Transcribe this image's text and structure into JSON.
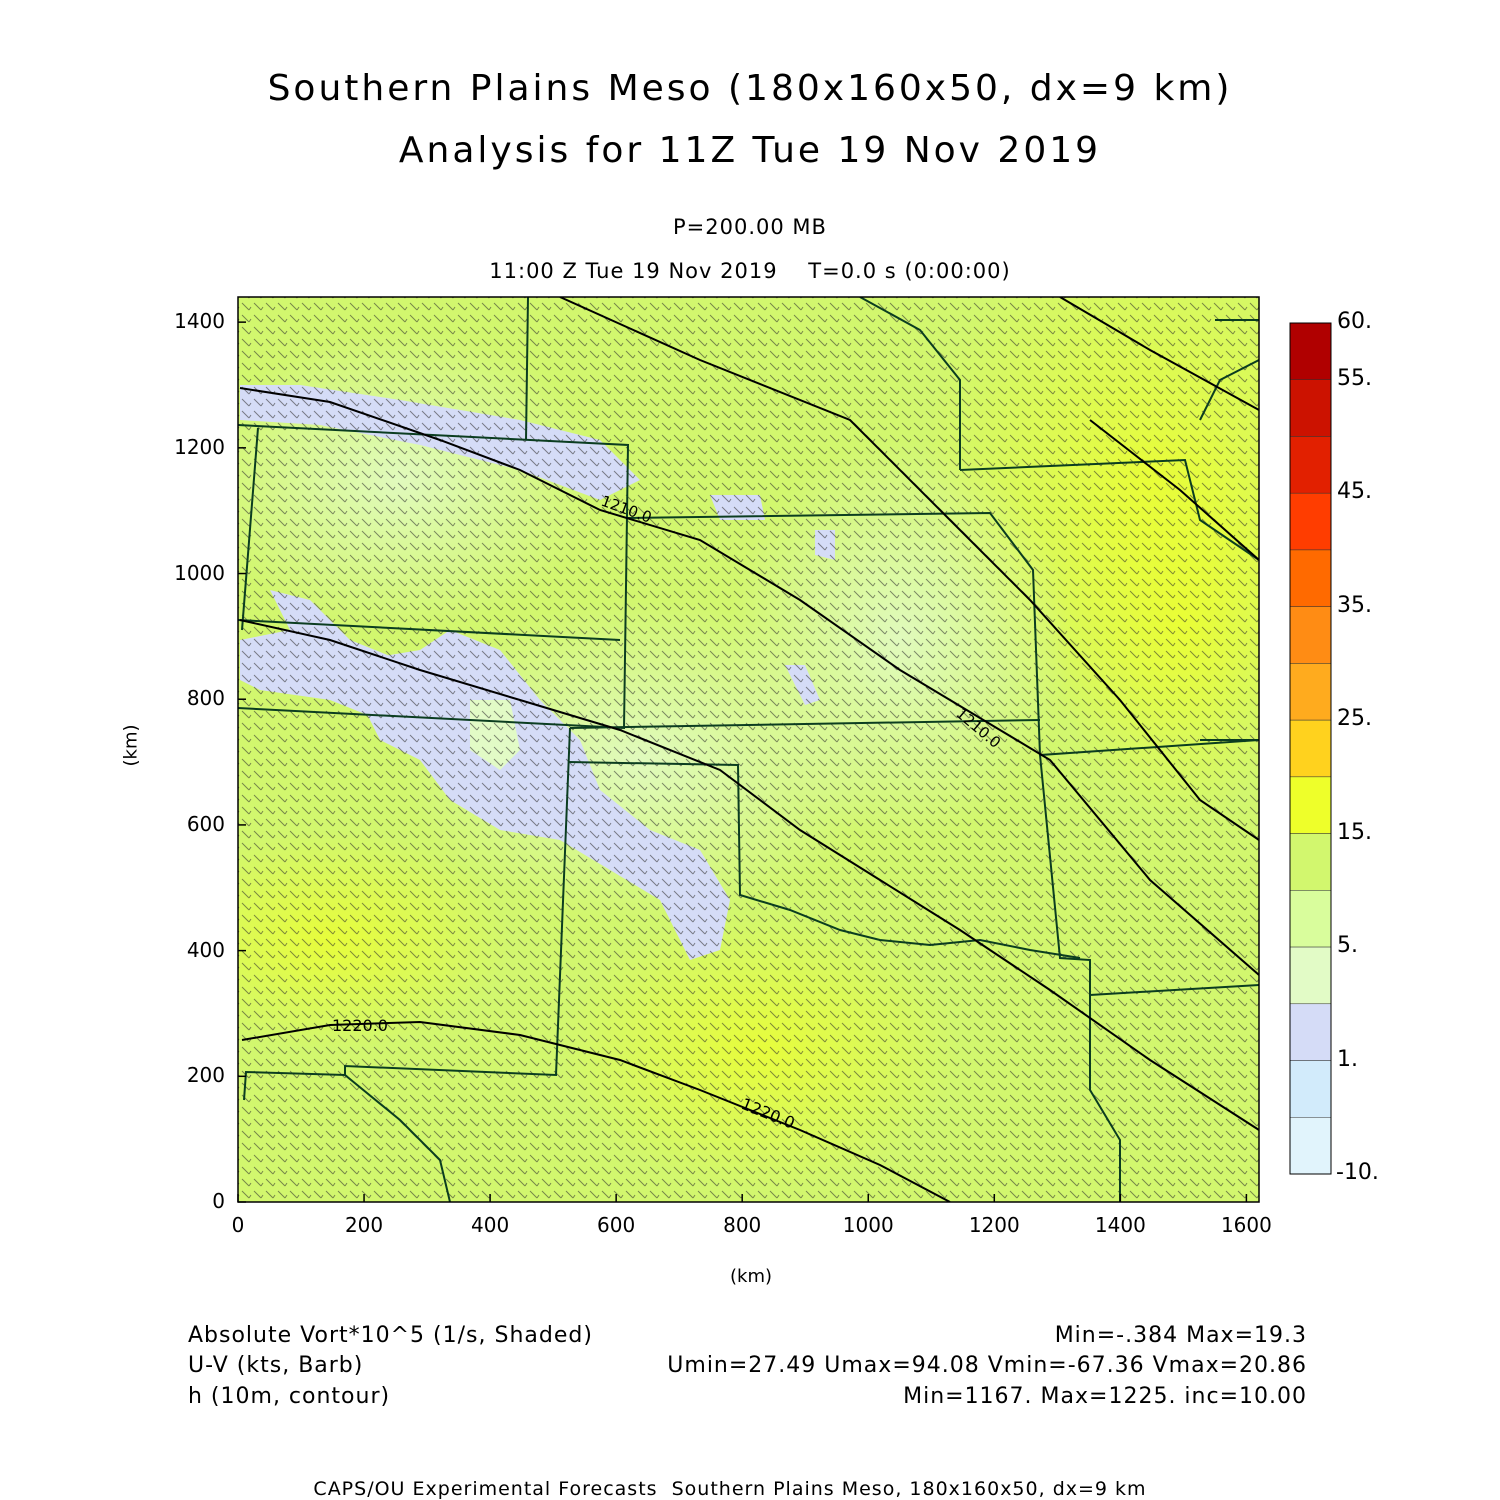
{
  "title": {
    "line1": "Southern Plains Meso (180x160x50, dx=9 km)",
    "line2": "Analysis for 11Z Tue 19 Nov 2019"
  },
  "level_label": "P=200.00 MB",
  "time_label": "11:00 Z Tue 19 Nov 2019    T=0.0 s (0:00:00)",
  "axes": {
    "x_label": "(km)",
    "y_label": "(km)",
    "x_ticks": [
      "0",
      "200",
      "400",
      "600",
      "800",
      "1000",
      "1200",
      "1400",
      "1600"
    ],
    "y_ticks": [
      "0",
      "200",
      "400",
      "600",
      "800",
      "1000",
      "1200",
      "1400"
    ],
    "x_range": [
      0,
      1620
    ],
    "y_range": [
      0,
      1440
    ]
  },
  "colorbar": {
    "labels": [
      "60.",
      "55.",
      "45.",
      "35.",
      "25.",
      "15.",
      "5.",
      "1.",
      "-10."
    ],
    "colors": [
      "#b00000",
      "#cc1200",
      "#e22000",
      "#ff3d00",
      "#ff6a00",
      "#ff8c14",
      "#ffab1e",
      "#ffd21e",
      "#eeff2a",
      "#d2f76e",
      "#d9fd9c",
      "#e2fbc6",
      "#d5dcf7",
      "#d2ebfb",
      "#e1f4fc"
    ]
  },
  "contours": [
    {
      "label": "1220.0"
    },
    {
      "label": "1220.0"
    },
    {
      "label": "1210.0"
    },
    {
      "label": "1210.0"
    }
  ],
  "info": {
    "field1_name": "Absolute Vort*10^5 (1/s, Shaded)",
    "field1_stats": "Min=-.384 Max=19.3",
    "field2_name": "U-V (kts, Barb)",
    "field2_stats": "Umin=27.49 Umax=94.08 Vmin=-67.36 Vmax=20.86",
    "field3_name": "h (10m, contour)",
    "field3_stats": "Min=1167. Max=1225. inc=10.00"
  },
  "footer": "CAPS/OU Experimental Forecasts  Southern Plains Meso, 180x160x50, dx=9 km"
}
